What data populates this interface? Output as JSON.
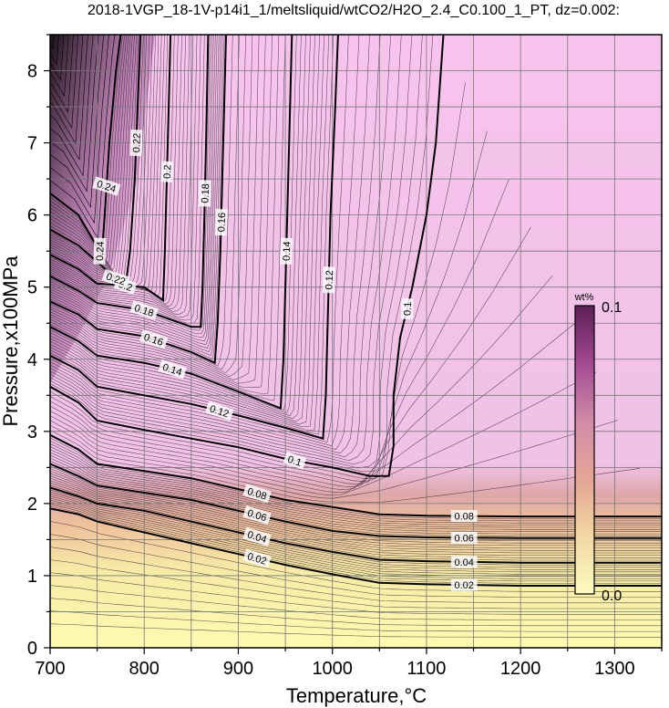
{
  "chart_data": {
    "type": "heatmap",
    "title": "2018-1VGP_18-1V-p14i1_1/meltsliquid/wtCO2/H2O_2.4_C0.100_1_PT, dz=0.002:",
    "xlabel": "Temperature,°C",
    "ylabel": "Pressure,x100MPa",
    "xlim": [
      700,
      1350
    ],
    "ylim": [
      0,
      8.5
    ],
    "x_ticks": [
      "700",
      "800",
      "900",
      "1000",
      "1100",
      "1200",
      "1300"
    ],
    "y_ticks": [
      "0",
      "1",
      "2",
      "3",
      "4",
      "5",
      "6",
      "7",
      "8"
    ],
    "grid": true,
    "colorbar": {
      "title": "wt%",
      "min_label": "0.0",
      "max_label": "0.1",
      "range": [
        0.0,
        0.1
      ],
      "colors": [
        "#fbfbc2",
        "#f2d7a3",
        "#e3a594",
        "#cf8ca6",
        "#a24a91",
        "#5c1e55"
      ]
    },
    "contour_interval": 0.002,
    "contours": [
      {
        "label": "0.02",
        "points": [
          [
            700,
            1.93
          ],
          [
            730,
            1.85
          ],
          [
            750,
            1.75
          ],
          [
            800,
            1.6
          ],
          [
            850,
            1.45
          ],
          [
            900,
            1.3
          ],
          [
            950,
            1.15
          ],
          [
            1000,
            1.02
          ],
          [
            1050,
            0.9
          ],
          [
            1100,
            0.88
          ],
          [
            1200,
            0.86
          ],
          [
            1350,
            0.86
          ]
        ]
      },
      {
        "label": "0.04",
        "points": [
          [
            700,
            2.22
          ],
          [
            730,
            2.1
          ],
          [
            750,
            2.0
          ],
          [
            800,
            1.9
          ],
          [
            850,
            1.75
          ],
          [
            900,
            1.6
          ],
          [
            950,
            1.45
          ],
          [
            1000,
            1.33
          ],
          [
            1050,
            1.22
          ],
          [
            1100,
            1.2
          ],
          [
            1200,
            1.18
          ],
          [
            1350,
            1.18
          ]
        ]
      },
      {
        "label": "0.06",
        "points": [
          [
            700,
            2.55
          ],
          [
            730,
            2.38
          ],
          [
            750,
            2.25
          ],
          [
            800,
            2.15
          ],
          [
            850,
            2.05
          ],
          [
            900,
            1.9
          ],
          [
            950,
            1.75
          ],
          [
            1000,
            1.62
          ],
          [
            1050,
            1.55
          ],
          [
            1100,
            1.53
          ],
          [
            1200,
            1.52
          ],
          [
            1350,
            1.52
          ]
        ]
      },
      {
        "label": "0.08",
        "points": [
          [
            700,
            2.95
          ],
          [
            730,
            2.75
          ],
          [
            750,
            2.55
          ],
          [
            800,
            2.45
          ],
          [
            850,
            2.35
          ],
          [
            900,
            2.2
          ],
          [
            950,
            2.05
          ],
          [
            1000,
            1.95
          ],
          [
            1050,
            1.85
          ],
          [
            1100,
            1.83
          ],
          [
            1200,
            1.82
          ],
          [
            1350,
            1.82
          ]
        ]
      },
      {
        "label": "0.1",
        "points": [
          [
            700,
            3.62
          ],
          [
            730,
            3.4
          ],
          [
            750,
            3.15
          ],
          [
            800,
            3.02
          ],
          [
            850,
            2.9
          ],
          [
            900,
            2.78
          ],
          [
            950,
            2.62
          ],
          [
            1000,
            2.5
          ],
          [
            1040,
            2.38
          ],
          [
            1060,
            2.38
          ],
          [
            1065,
            2.8
          ],
          [
            1065,
            3.5
          ],
          [
            1072,
            4.3
          ],
          [
            1085,
            5.0
          ],
          [
            1100,
            6.0
          ],
          [
            1110,
            7.0
          ],
          [
            1118,
            8.5
          ]
        ]
      },
      {
        "label": "0.12",
        "points": [
          [
            700,
            4.05
          ],
          [
            730,
            3.85
          ],
          [
            750,
            3.62
          ],
          [
            800,
            3.5
          ],
          [
            850,
            3.38
          ],
          [
            900,
            3.22
          ],
          [
            950,
            3.05
          ],
          [
            990,
            2.9
          ],
          [
            993,
            3.5
          ],
          [
            995,
            4.5
          ],
          [
            998,
            6.0
          ],
          [
            1003,
            7.5
          ],
          [
            1006,
            8.5
          ]
        ]
      },
      {
        "label": "0.14",
        "points": [
          [
            700,
            4.45
          ],
          [
            730,
            4.25
          ],
          [
            750,
            4.05
          ],
          [
            800,
            3.95
          ],
          [
            850,
            3.8
          ],
          [
            900,
            3.55
          ],
          [
            945,
            3.32
          ],
          [
            948,
            4.0
          ],
          [
            950,
            5.0
          ],
          [
            953,
            6.5
          ],
          [
            957,
            8.5
          ]
        ]
      },
      {
        "label": "0.16",
        "points": [
          [
            700,
            4.8
          ],
          [
            730,
            4.62
          ],
          [
            750,
            4.42
          ],
          [
            800,
            4.32
          ],
          [
            850,
            4.1
          ],
          [
            875,
            3.95
          ],
          [
            878,
            4.5
          ],
          [
            881,
            5.5
          ],
          [
            884,
            7.0
          ],
          [
            887,
            8.5
          ]
        ]
      },
      {
        "label": "0.18",
        "points": [
          [
            700,
            5.15
          ],
          [
            730,
            4.95
          ],
          [
            750,
            4.78
          ],
          [
            800,
            4.68
          ],
          [
            850,
            4.45
          ],
          [
            860,
            4.45
          ],
          [
            862,
            5.0
          ],
          [
            864,
            6.0
          ],
          [
            866,
            7.2
          ],
          [
            868,
            8.5
          ]
        ]
      },
      {
        "label": "0.2",
        "points": [
          [
            700,
            5.45
          ],
          [
            730,
            5.25
          ],
          [
            750,
            5.05
          ],
          [
            800,
            5.0
          ],
          [
            820,
            4.82
          ],
          [
            822,
            5.5
          ],
          [
            824,
            6.5
          ],
          [
            826,
            7.5
          ],
          [
            828,
            8.5
          ]
        ]
      },
      {
        "label": "0.22",
        "points": [
          [
            700,
            5.8
          ],
          [
            730,
            5.58
          ],
          [
            750,
            5.35
          ],
          [
            780,
            5.0
          ],
          [
            785,
            5.5
          ],
          [
            790,
            6.5
          ],
          [
            793,
            7.5
          ],
          [
            796,
            8.5
          ]
        ]
      },
      {
        "label": "0.24",
        "points": [
          [
            700,
            6.3
          ],
          [
            730,
            6.0
          ],
          [
            755,
            5.45
          ],
          [
            758,
            6.0
          ],
          [
            763,
            7.0
          ],
          [
            770,
            8.0
          ],
          [
            775,
            8.5
          ]
        ]
      }
    ]
  }
}
